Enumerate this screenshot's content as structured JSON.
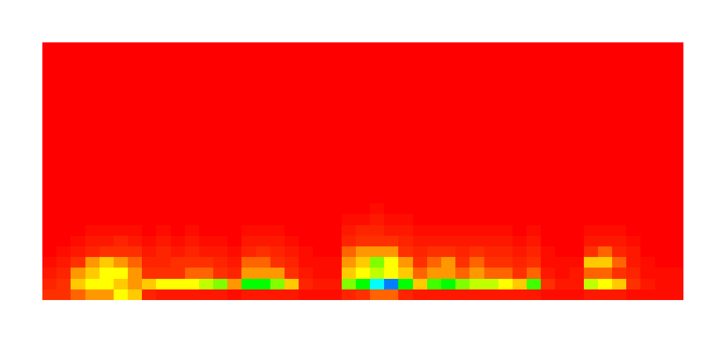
{
  "chart_data": {
    "type": "heatmap",
    "tick_labels": false,
    "xlim": [
      0,
      45
    ],
    "ylim": [
      0,
      24
    ],
    "zlim": [
      0,
      1
    ],
    "values": [
      [
        0.2,
        0.15,
        0.1,
        0.05,
        0,
        0,
        0,
        0,
        0,
        0,
        0,
        0,
        0,
        0,
        0,
        0,
        0,
        0,
        0,
        0,
        0,
        0,
        0,
        0
      ],
      [
        0.2,
        0.2,
        0.15,
        0.1,
        0.05,
        0,
        0,
        0,
        0,
        0,
        0,
        0,
        0,
        0,
        0,
        0,
        0,
        0,
        0,
        0,
        0,
        0,
        0,
        0
      ],
      [
        0.25,
        0.35,
        0.3,
        0.2,
        0.1,
        0.05,
        0,
        0,
        0,
        0,
        0,
        0,
        0,
        0,
        0,
        0,
        0,
        0,
        0,
        0,
        0,
        0,
        0,
        0
      ],
      [
        0.3,
        0.4,
        0.35,
        0.3,
        0.15,
        0.1,
        0.05,
        0,
        0,
        0,
        0,
        0,
        0,
        0,
        0,
        0,
        0,
        0,
        0,
        0,
        0,
        0,
        0,
        0
      ],
      [
        0.3,
        0.4,
        0.4,
        0.35,
        0.2,
        0.1,
        0.05,
        0,
        0,
        0,
        0,
        0,
        0,
        0,
        0,
        0,
        0,
        0,
        0,
        0,
        0,
        0,
        0,
        0
      ],
      [
        0.4,
        0.35,
        0.4,
        0.3,
        0.2,
        0.15,
        0.05,
        0,
        0,
        0,
        0,
        0,
        0,
        0,
        0,
        0,
        0,
        0,
        0,
        0,
        0,
        0,
        0,
        0
      ],
      [
        0.35,
        0.3,
        0.3,
        0.25,
        0.2,
        0.1,
        0.05,
        0,
        0,
        0,
        0,
        0,
        0,
        0,
        0,
        0,
        0,
        0,
        0,
        0,
        0,
        0,
        0,
        0
      ],
      [
        0.15,
        0.35,
        0.2,
        0.15,
        0.1,
        0.05,
        0,
        0,
        0,
        0,
        0,
        0,
        0,
        0,
        0,
        0,
        0,
        0,
        0,
        0,
        0,
        0,
        0,
        0
      ],
      [
        0.1,
        0.4,
        0.2,
        0.15,
        0.15,
        0.1,
        0.05,
        0,
        0,
        0,
        0,
        0,
        0,
        0,
        0,
        0,
        0,
        0,
        0,
        0,
        0,
        0,
        0,
        0
      ],
      [
        0.1,
        0.4,
        0.2,
        0.2,
        0.1,
        0.05,
        0,
        0,
        0,
        0,
        0,
        0,
        0,
        0,
        0,
        0,
        0,
        0,
        0,
        0,
        0,
        0,
        0,
        0
      ],
      [
        0.1,
        0.4,
        0.25,
        0.2,
        0.15,
        0.1,
        0.05,
        0,
        0,
        0,
        0,
        0,
        0,
        0,
        0,
        0,
        0,
        0,
        0,
        0,
        0,
        0,
        0,
        0
      ],
      [
        0.1,
        0.45,
        0.25,
        0.2,
        0.1,
        0.05,
        0,
        0,
        0,
        0,
        0,
        0,
        0,
        0,
        0,
        0,
        0,
        0,
        0,
        0,
        0,
        0,
        0,
        0
      ],
      [
        0.1,
        0.5,
        0.2,
        0.15,
        0.1,
        0.05,
        0,
        0,
        0,
        0,
        0,
        0,
        0,
        0,
        0,
        0,
        0,
        0,
        0,
        0,
        0,
        0,
        0,
        0
      ],
      [
        0.05,
        0.3,
        0.15,
        0.1,
        0.05,
        0,
        0,
        0,
        0,
        0,
        0,
        0,
        0,
        0,
        0,
        0,
        0,
        0,
        0,
        0,
        0,
        0,
        0,
        0
      ],
      [
        0.1,
        0.6,
        0.3,
        0.25,
        0.15,
        0.1,
        0.05,
        0,
        0,
        0,
        0,
        0,
        0,
        0,
        0,
        0,
        0,
        0,
        0,
        0,
        0,
        0,
        0,
        0
      ],
      [
        0.1,
        0.6,
        0.3,
        0.25,
        0.2,
        0.1,
        0.05,
        0,
        0,
        0,
        0,
        0,
        0,
        0,
        0,
        0,
        0,
        0,
        0,
        0,
        0,
        0,
        0,
        0
      ],
      [
        0.1,
        0.5,
        0.3,
        0.2,
        0.15,
        0.1,
        0.05,
        0,
        0,
        0,
        0,
        0,
        0,
        0,
        0,
        0,
        0,
        0,
        0,
        0,
        0,
        0,
        0,
        0
      ],
      [
        0.1,
        0.35,
        0.2,
        0.15,
        0.1,
        0.05,
        0,
        0,
        0,
        0,
        0,
        0,
        0,
        0,
        0,
        0,
        0,
        0,
        0,
        0,
        0,
        0,
        0,
        0
      ],
      [
        0.05,
        0.15,
        0.1,
        0.05,
        0.05,
        0,
        0,
        0,
        0,
        0,
        0,
        0,
        0,
        0,
        0,
        0,
        0,
        0,
        0,
        0,
        0,
        0,
        0,
        0
      ],
      [
        0.05,
        0.1,
        0.05,
        0.05,
        0,
        0,
        0,
        0,
        0,
        0,
        0,
        0,
        0,
        0,
        0,
        0,
        0,
        0,
        0,
        0,
        0,
        0,
        0,
        0
      ],
      [
        0.05,
        0.1,
        0.05,
        0.05,
        0,
        0,
        0,
        0,
        0,
        0,
        0,
        0,
        0,
        0,
        0,
        0,
        0,
        0,
        0,
        0,
        0,
        0,
        0,
        0
      ],
      [
        0.15,
        0.5,
        0.35,
        0.3,
        0.25,
        0.15,
        0.1,
        0.05,
        0,
        0,
        0,
        0,
        0,
        0,
        0,
        0,
        0,
        0,
        0,
        0,
        0,
        0,
        0,
        0
      ],
      [
        0.2,
        0.6,
        0.4,
        0.35,
        0.3,
        0.2,
        0.15,
        0.05,
        0,
        0,
        0,
        0,
        0,
        0,
        0,
        0,
        0,
        0,
        0,
        0,
        0,
        0,
        0,
        0
      ],
      [
        0.25,
        0.8,
        0.45,
        0.5,
        0.3,
        0.2,
        0.15,
        0.1,
        0.05,
        0,
        0,
        0,
        0,
        0,
        0,
        0,
        0,
        0,
        0,
        0,
        0,
        0,
        0,
        0
      ],
      [
        0.25,
        0.9,
        0.4,
        0.4,
        0.3,
        0.2,
        0.1,
        0.05,
        0,
        0,
        0,
        0,
        0,
        0,
        0,
        0,
        0,
        0,
        0,
        0,
        0,
        0,
        0,
        0
      ],
      [
        0.15,
        0.6,
        0.35,
        0.3,
        0.2,
        0.15,
        0.1,
        0.05,
        0,
        0,
        0,
        0,
        0,
        0,
        0,
        0,
        0,
        0,
        0,
        0,
        0,
        0,
        0,
        0
      ],
      [
        0.1,
        0.35,
        0.25,
        0.2,
        0.15,
        0.1,
        0.05,
        0,
        0,
        0,
        0,
        0,
        0,
        0,
        0,
        0,
        0,
        0,
        0,
        0,
        0,
        0,
        0,
        0
      ],
      [
        0.1,
        0.55,
        0.3,
        0.25,
        0.2,
        0.1,
        0.05,
        0,
        0,
        0,
        0,
        0,
        0,
        0,
        0,
        0,
        0,
        0,
        0,
        0,
        0,
        0,
        0,
        0
      ],
      [
        0.1,
        0.6,
        0.3,
        0.3,
        0.2,
        0.1,
        0.05,
        0,
        0,
        0,
        0,
        0,
        0,
        0,
        0,
        0,
        0,
        0,
        0,
        0,
        0,
        0,
        0,
        0
      ],
      [
        0.1,
        0.5,
        0.25,
        0.2,
        0.15,
        0.1,
        0.05,
        0,
        0,
        0,
        0,
        0,
        0,
        0,
        0,
        0,
        0,
        0,
        0,
        0,
        0,
        0,
        0,
        0
      ],
      [
        0.1,
        0.45,
        0.3,
        0.25,
        0.2,
        0.1,
        0.05,
        0,
        0,
        0,
        0,
        0,
        0,
        0,
        0,
        0,
        0,
        0,
        0,
        0,
        0,
        0,
        0,
        0
      ],
      [
        0.1,
        0.45,
        0.25,
        0.2,
        0.15,
        0.1,
        0.05,
        0,
        0,
        0,
        0,
        0,
        0,
        0,
        0,
        0,
        0,
        0,
        0,
        0,
        0,
        0,
        0,
        0
      ],
      [
        0.1,
        0.4,
        0.25,
        0.2,
        0.15,
        0.1,
        0.05,
        0,
        0,
        0,
        0,
        0,
        0,
        0,
        0,
        0,
        0,
        0,
        0,
        0,
        0,
        0,
        0,
        0
      ],
      [
        0.1,
        0.35,
        0.2,
        0.15,
        0.1,
        0.05,
        0,
        0,
        0,
        0,
        0,
        0,
        0,
        0,
        0,
        0,
        0,
        0,
        0,
        0,
        0,
        0,
        0,
        0
      ],
      [
        0.1,
        0.55,
        0.25,
        0.2,
        0.15,
        0.1,
        0.05,
        0,
        0,
        0,
        0,
        0,
        0,
        0,
        0,
        0,
        0,
        0,
        0,
        0,
        0,
        0,
        0,
        0
      ],
      [
        0.05,
        0.2,
        0.1,
        0.05,
        0.05,
        0,
        0,
        0,
        0,
        0,
        0,
        0,
        0,
        0,
        0,
        0,
        0,
        0,
        0,
        0,
        0,
        0,
        0,
        0
      ],
      [
        0.05,
        0.1,
        0.05,
        0.05,
        0,
        0,
        0,
        0,
        0,
        0,
        0,
        0,
        0,
        0,
        0,
        0,
        0,
        0,
        0,
        0,
        0,
        0,
        0,
        0
      ],
      [
        0.05,
        0.1,
        0.1,
        0.05,
        0,
        0,
        0,
        0,
        0,
        0,
        0,
        0,
        0,
        0,
        0,
        0,
        0,
        0,
        0,
        0,
        0,
        0,
        0,
        0
      ],
      [
        0.1,
        0.45,
        0.25,
        0.35,
        0.2,
        0.1,
        0.05,
        0,
        0,
        0,
        0,
        0,
        0,
        0,
        0,
        0,
        0,
        0,
        0,
        0,
        0,
        0,
        0,
        0
      ],
      [
        0.1,
        0.4,
        0.25,
        0.35,
        0.25,
        0.1,
        0.05,
        0,
        0,
        0,
        0,
        0,
        0,
        0,
        0,
        0,
        0,
        0,
        0,
        0,
        0,
        0,
        0,
        0
      ],
      [
        0.1,
        0.35,
        0.2,
        0.25,
        0.15,
        0.1,
        0.05,
        0,
        0,
        0,
        0,
        0,
        0,
        0,
        0,
        0,
        0,
        0,
        0,
        0,
        0,
        0,
        0,
        0
      ],
      [
        0.05,
        0.2,
        0.15,
        0.1,
        0.1,
        0.05,
        0,
        0,
        0,
        0,
        0,
        0,
        0,
        0,
        0,
        0,
        0,
        0,
        0,
        0,
        0,
        0,
        0,
        0
      ],
      [
        0.05,
        0.1,
        0.05,
        0.05,
        0,
        0,
        0,
        0,
        0,
        0,
        0,
        0,
        0,
        0,
        0,
        0,
        0,
        0,
        0,
        0,
        0,
        0,
        0,
        0
      ],
      [
        0.05,
        0.05,
        0.05,
        0,
        0,
        0,
        0,
        0,
        0,
        0,
        0,
        0,
        0,
        0,
        0,
        0,
        0,
        0,
        0,
        0,
        0,
        0,
        0,
        0
      ],
      [
        0.05,
        0.05,
        0.05,
        0,
        0,
        0,
        0,
        0,
        0,
        0,
        0,
        0,
        0,
        0,
        0,
        0,
        0,
        0,
        0,
        0,
        0,
        0,
        0,
        0
      ]
    ]
  }
}
